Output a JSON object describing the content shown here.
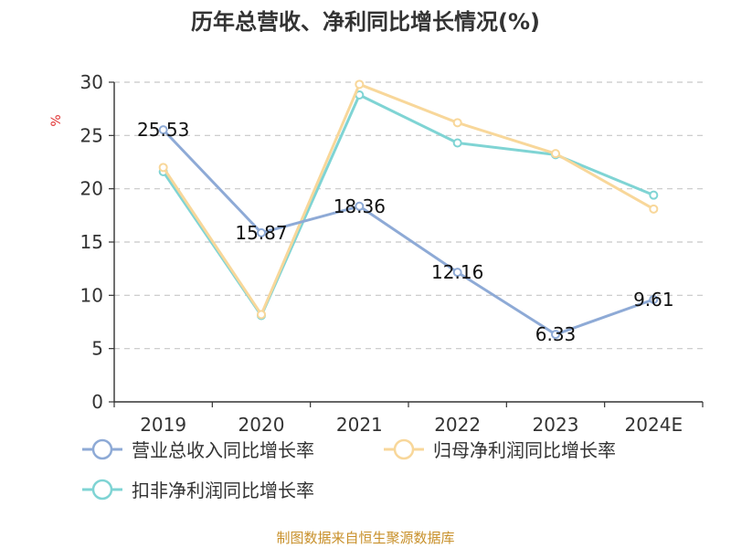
{
  "chart_data": {
    "type": "line",
    "title": "历年总营收、净利同比增长情况(%)",
    "ylabel": "%",
    "categories": [
      "2019",
      "2020",
      "2021",
      "2022",
      "2023",
      "2024E"
    ],
    "ylim": [
      0,
      30
    ],
    "yticks": [
      0,
      5,
      10,
      15,
      20,
      25,
      30
    ],
    "grid": true,
    "legend_position": "bottom",
    "series": [
      {
        "name": "营业总收入同比增长率",
        "color": "#8eaad6",
        "values": [
          25.53,
          15.87,
          18.36,
          12.16,
          6.33,
          9.61
        ],
        "labels": [
          "25.53",
          "15.87",
          "18.36",
          "12.16",
          "6.33",
          "9.61"
        ]
      },
      {
        "name": "归母净利润同比增长率",
        "color": "#f8d79a",
        "values": [
          22.0,
          8.2,
          29.8,
          26.2,
          23.3,
          18.1
        ]
      },
      {
        "name": "扣非净利润同比增长率",
        "color": "#7fd4d4",
        "values": [
          21.6,
          8.1,
          28.8,
          24.3,
          23.2,
          19.4
        ]
      }
    ]
  },
  "source": "制图数据来自恒生聚源数据库"
}
